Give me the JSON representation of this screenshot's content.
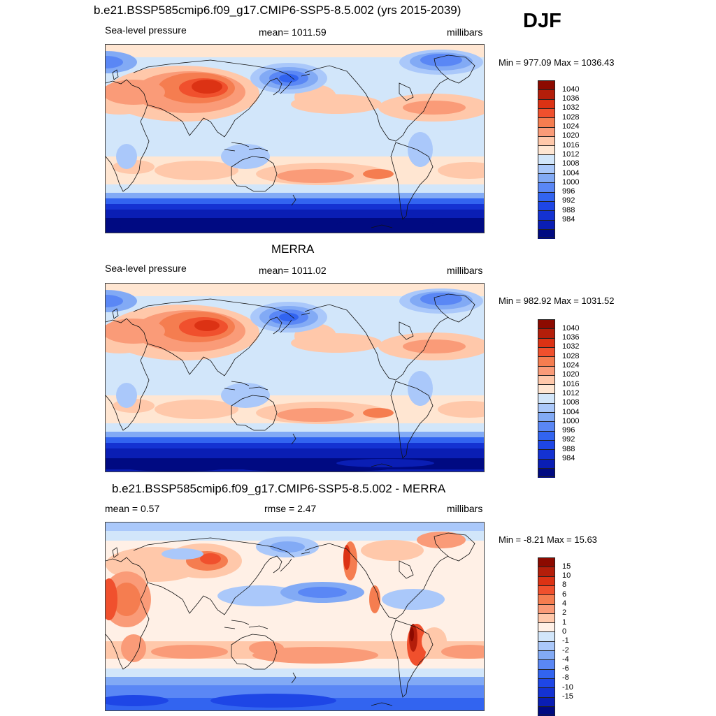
{
  "season": "DJF",
  "colors": {
    "sequential": [
      "#000a82",
      "#0a1eb4",
      "#1432d2",
      "#1e46e6",
      "#3264f0",
      "#5a87f5",
      "#82aaf5",
      "#aac8fa",
      "#d2e6fa",
      "#ffe6d2",
      "#ffc8aa",
      "#fa9b78",
      "#f57d50",
      "#f0502d",
      "#dc3214",
      "#b41e0a",
      "#8c0a00"
    ],
    "diverging": [
      "#000a82",
      "#0a1eb4",
      "#1432d2",
      "#1e46e6",
      "#3264f0",
      "#5a87f5",
      "#82aaf5",
      "#aac8fa",
      "#d2e6fa",
      "#fff0e6",
      "#ffc8aa",
      "#fa9b78",
      "#f57d50",
      "#f0502d",
      "#dc3214",
      "#b41e0a",
      "#8c0a00"
    ]
  },
  "panels": [
    {
      "title": "b.e21.BSSP585cmip6.f09_g17.CMIP6-SSP5-8.5.002 (yrs 2015-2039)",
      "left": "Sea-level pressure",
      "center": "mean= 1011.59",
      "right": "millibars",
      "minmax": "Min = 977.09 Max = 1036.43",
      "colorbar_labels": [
        "1040",
        "1036",
        "1032",
        "1028",
        "1024",
        "1020",
        "1016",
        "1012",
        "1008",
        "1004",
        "1000",
        "996",
        "992",
        "988",
        "984"
      ],
      "variant": "model"
    },
    {
      "title": "MERRA",
      "left": "Sea-level pressure",
      "center": "mean= 1011.02",
      "right": "millibars",
      "minmax": "Min = 982.92 Max = 1031.52",
      "colorbar_labels": [
        "1040",
        "1036",
        "1032",
        "1028",
        "1024",
        "1020",
        "1016",
        "1012",
        "1008",
        "1004",
        "1000",
        "996",
        "992",
        "988",
        "984"
      ],
      "variant": "obs"
    },
    {
      "title": "b.e21.BSSP585cmip6.f09_g17.CMIP6-SSP5-8.5.002 - MERRA",
      "left": "mean =   0.57",
      "center": "rmse =   2.47",
      "right": "millibars",
      "minmax": "Min =  -8.21 Max =  15.63",
      "colorbar_labels": [
        "15",
        "10",
        "8",
        "6",
        "4",
        "2",
        "1",
        "0",
        "-1",
        "-2",
        "-4",
        "-6",
        "-8",
        "-10",
        "-15"
      ],
      "variant": "diff"
    }
  ]
}
